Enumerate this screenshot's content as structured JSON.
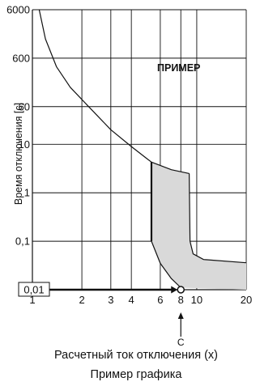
{
  "chart_data": {
    "type": "line",
    "title": "",
    "annotation": "ПРИМЕР",
    "xlabel": "Расчетный ток отключения (x)",
    "subtitle": "Пример графика",
    "ylabel": "Время отключения [с]",
    "x_scale": "log",
    "y_scale": "log",
    "xlim": [
      1,
      20
    ],
    "ylim": [
      0.01,
      6000
    ],
    "x_ticks": [
      {
        "value": 1,
        "label": "1"
      },
      {
        "value": 2,
        "label": "2"
      },
      {
        "value": 3,
        "label": "3"
      },
      {
        "value": 4,
        "label": "4"
      },
      {
        "value": 6,
        "label": "6"
      },
      {
        "value": 8,
        "label": "8"
      },
      {
        "value": 10,
        "label": "10"
      },
      {
        "value": 20,
        "label": "20"
      }
    ],
    "y_ticks": [
      {
        "value": 0.01,
        "label": "0,01",
        "boxed": true
      },
      {
        "value": 0.1,
        "label": "0,1"
      },
      {
        "value": 1,
        "label": "1"
      },
      {
        "value": 10,
        "label": "10"
      },
      {
        "value": 60,
        "label": "60"
      },
      {
        "value": 600,
        "label": "600"
      },
      {
        "value": 6000,
        "label": "6000"
      }
    ],
    "grid": true,
    "series": [
      {
        "values": [
          {
            "x": 1.1,
            "y": 6000
          },
          {
            "x": 1.2,
            "y": 1500
          },
          {
            "x": 1.4,
            "y": 400
          },
          {
            "x": 1.7,
            "y": 150
          },
          {
            "x": 2.2,
            "y": 60
          },
          {
            "x": 3.0,
            "y": 20
          },
          {
            "x": 4.0,
            "y": 9
          },
          {
            "x": 5.0,
            "y": 5
          },
          {
            "x": 5.3,
            "y": 4.3
          }
        ]
      }
    ],
    "band": {
      "x_start": 5.3,
      "x_end": 9.0,
      "upper": [
        {
          "x": 5.3,
          "y": 4.3
        },
        {
          "x": 7.0,
          "y": 3.0
        },
        {
          "x": 9.0,
          "y": 2.5
        }
      ],
      "lower": [
        {
          "x": 5.3,
          "y": 0.1
        },
        {
          "x": 6.0,
          "y": 0.035
        },
        {
          "x": 7.0,
          "y": 0.017
        },
        {
          "x": 8.0,
          "y": 0.011
        }
      ],
      "right_upper": [
        {
          "x": 9.0,
          "y": 2.5
        },
        {
          "x": 9.1,
          "y": 0.1
        },
        {
          "x": 9.5,
          "y": 0.055
        },
        {
          "x": 11.0,
          "y": 0.042
        },
        {
          "x": 20.0,
          "y": 0.036
        }
      ],
      "fill_color": "#d9d9d9"
    },
    "example_point": {
      "x": 8,
      "y": 0.01,
      "label": "C"
    },
    "colors": {
      "line": "#111111",
      "grid": "#111111",
      "fill": "#d9d9d9"
    }
  }
}
